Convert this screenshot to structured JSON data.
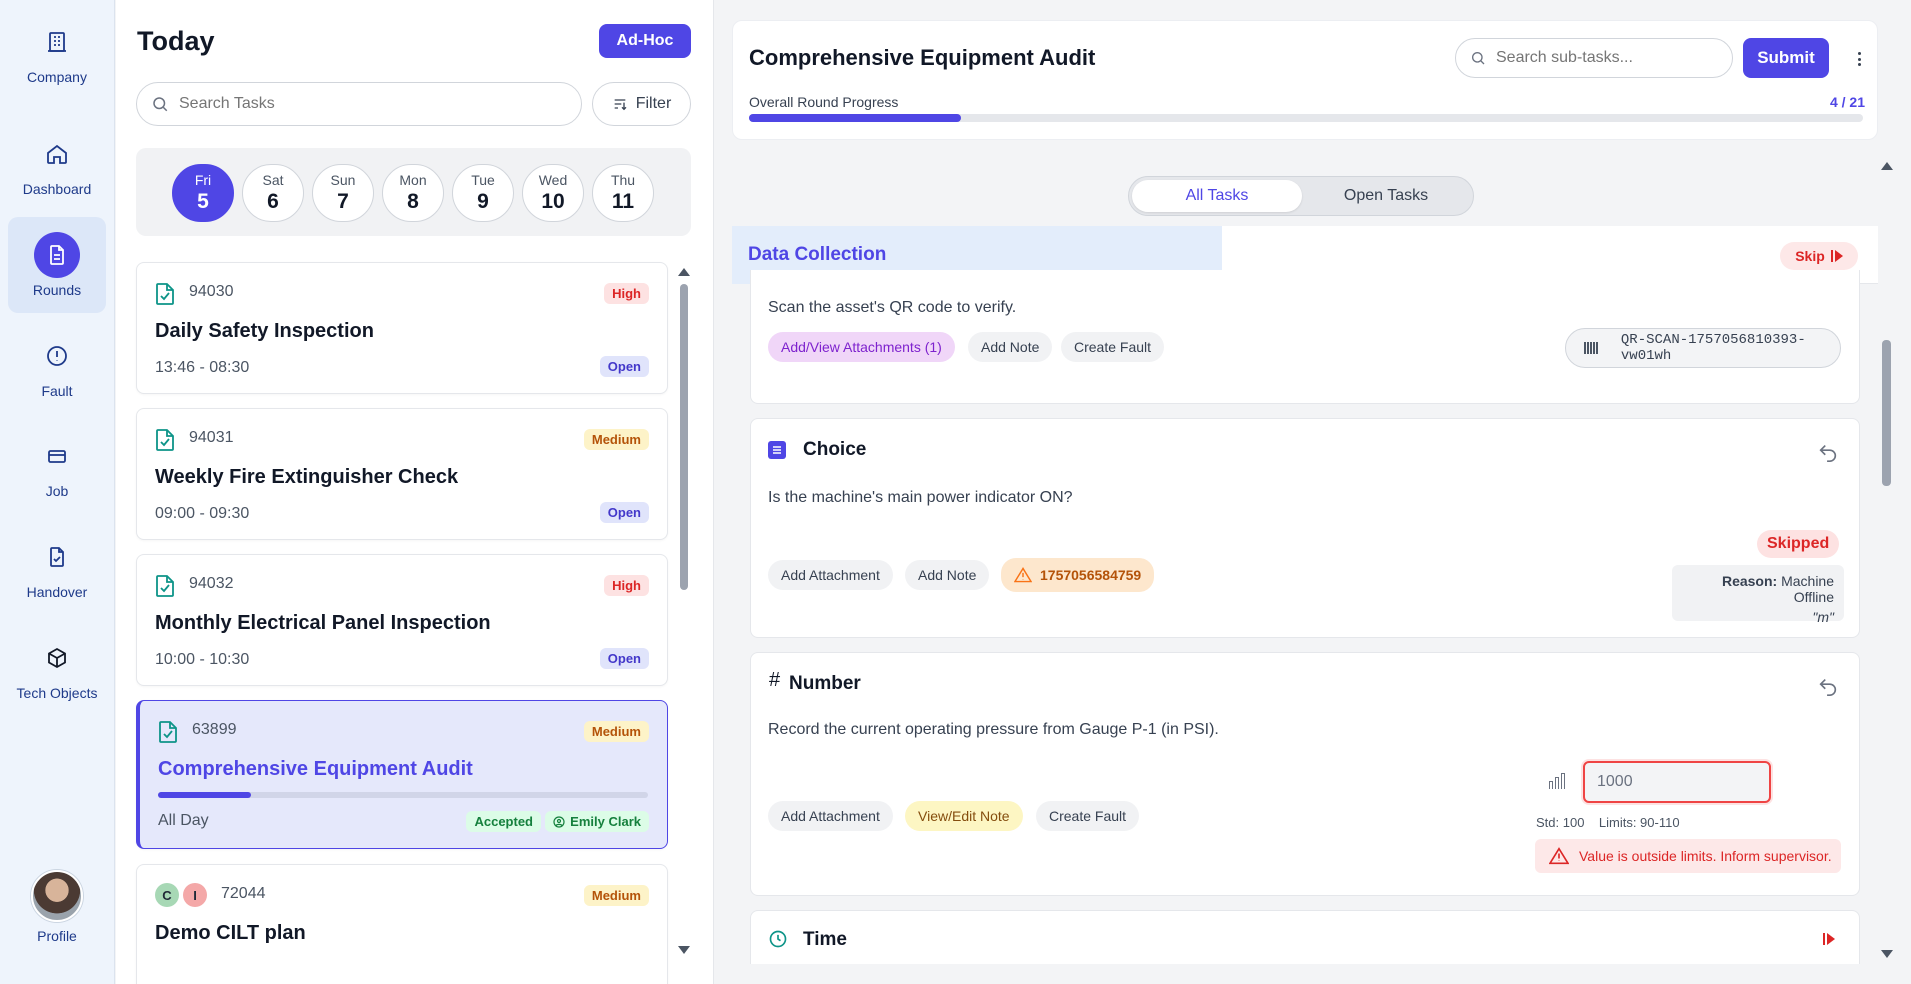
{
  "sidebar": {
    "items": [
      {
        "label": "Company",
        "icon": "building-icon"
      },
      {
        "label": "Dashboard",
        "icon": "home-icon"
      },
      {
        "label": "Rounds",
        "icon": "document-icon",
        "active": true
      },
      {
        "label": "Fault",
        "icon": "alert-circle-icon"
      },
      {
        "label": "Job",
        "icon": "ticket-icon"
      },
      {
        "label": "Handover",
        "icon": "file-check-icon"
      },
      {
        "label": "Tech Objects",
        "icon": "cube-icon"
      }
    ],
    "profile_label": "Profile"
  },
  "task_list": {
    "title": "Today",
    "adhoc_label": "Ad-Hoc",
    "search_placeholder": "Search Tasks",
    "filter_label": "Filter",
    "days": [
      {
        "name": "Fri",
        "date": "5",
        "active": true
      },
      {
        "name": "Sat",
        "date": "6"
      },
      {
        "name": "Sun",
        "date": "7"
      },
      {
        "name": "Mon",
        "date": "8"
      },
      {
        "name": "Tue",
        "date": "9"
      },
      {
        "name": "Wed",
        "date": "10"
      },
      {
        "name": "Thu",
        "date": "11"
      }
    ],
    "tasks": [
      {
        "id": "94030",
        "priority": "High",
        "title": "Daily Safety Inspection",
        "time": "13:46 - 08:30",
        "status": "Open"
      },
      {
        "id": "94031",
        "priority": "Medium",
        "title": "Weekly Fire Extinguisher Check",
        "time": "09:00 - 09:30",
        "status": "Open"
      },
      {
        "id": "94032",
        "priority": "High",
        "title": "Monthly Electrical Panel Inspection",
        "time": "10:00 - 10:30",
        "status": "Open"
      },
      {
        "id": "63899",
        "priority": "Medium",
        "title": "Comprehensive Equipment Audit",
        "time": "All Day",
        "status": "Accepted",
        "assignee": "Emily Clark",
        "progress": 0.19,
        "selected": true
      },
      {
        "id": "72044",
        "priority": "Medium",
        "title": "Demo CILT plan",
        "avatars": [
          "C",
          "I"
        ]
      }
    ]
  },
  "detail": {
    "title": "Comprehensive Equipment Audit",
    "search_placeholder": "Search sub-tasks...",
    "submit_label": "Submit",
    "progress_label": "Overall Round Progress",
    "progress_count": "4 / 21",
    "progress_fraction": 0.19,
    "tabs": [
      {
        "label": "All Tasks",
        "active": true
      },
      {
        "label": "Open Tasks"
      }
    ],
    "section": {
      "title": "Data Collection",
      "skip_label": "Skip"
    },
    "cards": {
      "qr": {
        "question": "Scan the asset's QR code to verify.",
        "attach_label": "Add/View Attachments (1)",
        "note_label": "Add Note",
        "fault_label": "Create Fault",
        "qr_value": "QR-SCAN-1757056810393-vw01wh"
      },
      "choice": {
        "title": "Choice",
        "question": "Is the machine's main power indicator ON?",
        "attach_label": "Add Attachment",
        "note_label": "Add Note",
        "fault_id": "1757056584759",
        "status": "Skipped",
        "reason_label": "Reason:",
        "reason_value": "Machine Offline",
        "reason_quote": "\"m\""
      },
      "number": {
        "title": "Number",
        "title_glyph": "#",
        "question": "Record the current operating pressure from Gauge P-1 (in PSI).",
        "attach_label": "Add Attachment",
        "note_label": "View/Edit Note",
        "fault_label": "Create Fault",
        "value": "1000",
        "std": "Std: 100    Limits: 90-110",
        "warning": "Value is outside limits. Inform supervisor."
      },
      "time": {
        "title": "Time"
      }
    }
  },
  "colors": {
    "primary": "#4f46e5",
    "danger": "#dc2626",
    "success": "#15803d",
    "warning": "#b45309"
  }
}
